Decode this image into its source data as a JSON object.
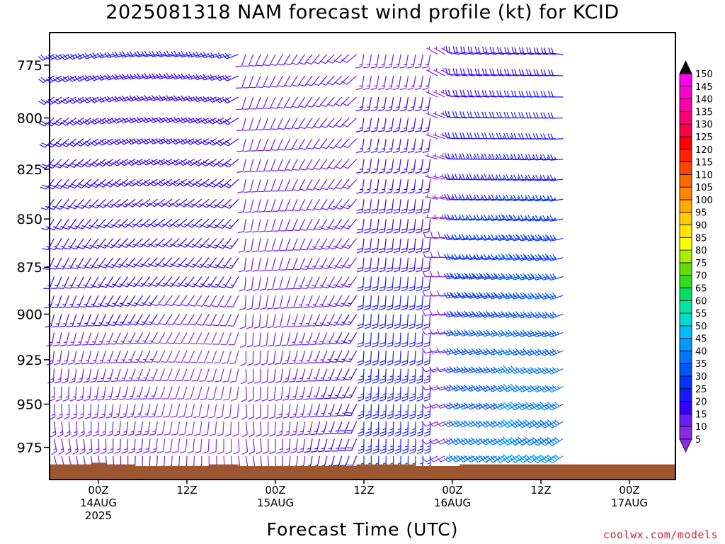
{
  "title": "2025081318 NAM forecast wind profile (kt) for KCID",
  "xlabel": "Forecast Time (UTC)",
  "credit": "coolwx.com/models",
  "colors": {
    "surface": "#9c5630",
    "background": "#ffffff",
    "frame": "#000000"
  },
  "chart_data": {
    "type": "wind-barb-profile",
    "title": "2025081318 NAM forecast wind profile (kt) for KCID",
    "xlabel": "Forecast Time (UTC)",
    "ylabel": "",
    "units": "kt",
    "x_range_hours": [
      -7,
      63
    ],
    "y_range_hPa": [
      760,
      994
    ],
    "y_scale": "log-pressure",
    "y_ticks": [
      775,
      800,
      825,
      850,
      875,
      900,
      925,
      950,
      975
    ],
    "x_ticks": [
      {
        "hour": 0,
        "lines": [
          "00Z",
          "14AUG",
          "2025"
        ]
      },
      {
        "hour": 12,
        "lines": [
          "12Z"
        ]
      },
      {
        "hour": 24,
        "lines": [
          "00Z",
          "15AUG"
        ]
      },
      {
        "hour": 36,
        "lines": [
          "12Z"
        ]
      },
      {
        "hour": 48,
        "lines": [
          "00Z",
          "16AUG"
        ]
      },
      {
        "hour": 60,
        "lines": [
          "12Z"
        ]
      },
      {
        "hour": 72,
        "lines": [
          "00Z",
          "17AUG"
        ]
      }
    ],
    "x_tick_note": "x axis spans hours 0 (00Z 14AUG) to 72 (00Z 17AUG); run starts 2025081318",
    "colorbar": {
      "labels": [
        5,
        10,
        15,
        20,
        25,
        30,
        35,
        40,
        45,
        50,
        55,
        60,
        65,
        70,
        75,
        80,
        85,
        90,
        95,
        100,
        105,
        110,
        115,
        120,
        125,
        130,
        135,
        140,
        145,
        150
      ],
      "colors": [
        "#8a2be2",
        "#6a1df5",
        "#3300ff",
        "#1a1aff",
        "#0033ff",
        "#0055ff",
        "#0077ff",
        "#0099ff",
        "#00bbff",
        "#00ddcc",
        "#00e6aa",
        "#00e066",
        "#33dd22",
        "#66dd00",
        "#aaee00",
        "#ffff00",
        "#ffe600",
        "#ffcc00",
        "#ffaa00",
        "#ff8800",
        "#ff6600",
        "#ff4400",
        "#ff2200",
        "#ff0000",
        "#ff0044",
        "#ff0077",
        "#ff00aa",
        "#ff00cc",
        "#ff00ee",
        "#000000"
      ]
    },
    "surface_pressure_hPa": [
      985,
      985,
      985,
      984,
      985,
      985,
      986,
      986,
      986,
      986,
      986,
      985,
      985,
      986,
      986,
      986,
      986,
      986,
      986,
      986,
      986,
      985,
      985,
      985,
      985,
      986,
      986,
      986,
      985,
      985,
      985
    ],
    "surface_hours": [
      -7,
      -5,
      -3,
      -1,
      1,
      3,
      5,
      7,
      9,
      11,
      13,
      15,
      17,
      19,
      21,
      23,
      25,
      27,
      29,
      31,
      33,
      35,
      37,
      39,
      41,
      43,
      45,
      47,
      49,
      51,
      53
    ],
    "barb_grid_note": "wind barbs every hour on every 10 hPa level; speed 5-40 kt, southerly to northwesterly flow"
  }
}
